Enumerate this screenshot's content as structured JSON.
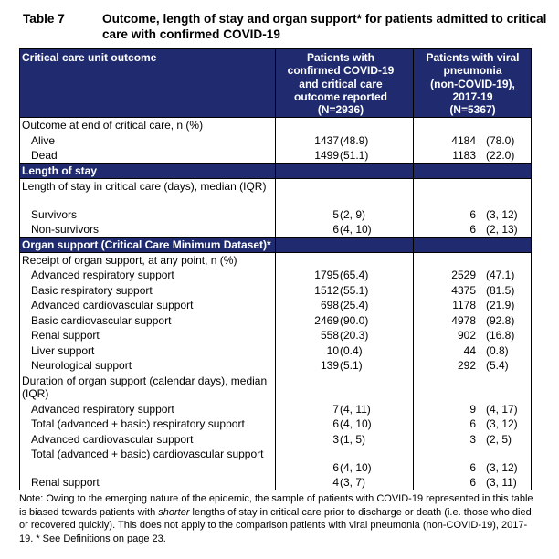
{
  "table": {
    "number": "Table 7",
    "title": "Outcome, length of stay and organ support* for patients admitted to critical care with confirmed COVID-19",
    "header": {
      "col0": "Critical care unit outcome",
      "col1": [
        "Patients with",
        "confirmed COVID-19",
        "and critical care",
        "outcome reported",
        "(N=2936)"
      ],
      "col2": [
        "Patients with viral",
        "pneumonia",
        "(non-COVID-19),",
        "2017-19",
        "(N=5367)"
      ]
    },
    "outcome": {
      "heading": "Outcome at end of critical care, n (%)",
      "rows": [
        {
          "label": "Alive",
          "n1": "1437",
          "p1": "(48.9)",
          "n2": "4184",
          "p2": "(78.0)"
        },
        {
          "label": "Dead",
          "n1": "1499",
          "p1": "(51.1)",
          "n2": "1183",
          "p2": "(22.0)"
        }
      ]
    },
    "los": {
      "section": "Length of stay",
      "heading": "Length of stay in critical care (days), median (IQR)",
      "rows": [
        {
          "label": "Survivors",
          "n1": "5",
          "p1": "(2, 9)",
          "n2": "6",
          "p2": "(3, 12)"
        },
        {
          "label": "Non-survivors",
          "n1": "6",
          "p1": "(4, 10)",
          "n2": "6",
          "p2": "(2, 13)"
        }
      ]
    },
    "organ": {
      "section": "Organ support (Critical Care Minimum Dataset)*",
      "heading": "Receipt of organ support, at any point, n (%)",
      "rows": [
        {
          "label": "Advanced respiratory support",
          "n1": "1795",
          "p1": "(65.4)",
          "n2": "2529",
          "p2": "(47.1)"
        },
        {
          "label": "Basic respiratory support",
          "n1": "1512",
          "p1": "(55.1)",
          "n2": "4375",
          "p2": "(81.5)"
        },
        {
          "label": "Advanced cardiovascular support",
          "n1": "698",
          "p1": "(25.4)",
          "n2": "1178",
          "p2": "(21.9)"
        },
        {
          "label": "Basic cardiovascular support",
          "n1": "2469",
          "p1": "(90.0)",
          "n2": "4978",
          "p2": "(92.8)"
        },
        {
          "label": "Renal support",
          "n1": "558",
          "p1": "(20.3)",
          "n2": "902",
          "p2": "(16.8)"
        },
        {
          "label": "Liver support",
          "n1": "10",
          "p1": "(0.4)",
          "n2": "44",
          "p2": "(0.8)"
        },
        {
          "label": "Neurological support",
          "n1": "139",
          "p1": "(5.1)",
          "n2": "292",
          "p2": "(5.4)"
        }
      ],
      "duration_heading": "Duration of organ support (calendar days), median (IQR)",
      "duration_rows": [
        {
          "label": "Advanced respiratory support",
          "n1": "7",
          "p1": "(4, 11)",
          "n2": "9",
          "p2": "(4, 17)"
        },
        {
          "label": "Total (advanced + basic) respiratory support",
          "n1": "6",
          "p1": "(4, 10)",
          "n2": "6",
          "p2": "(3, 12)"
        },
        {
          "label": "Advanced cardiovascular support",
          "n1": "3",
          "p1": "(1, 5)",
          "n2": "3",
          "p2": "(2, 5)"
        },
        {
          "label": "Total (advanced + basic) cardiovascular support",
          "n1": "6",
          "p1": "(4, 10)",
          "n2": "6",
          "p2": "(3, 12)"
        },
        {
          "label": "Renal support",
          "n1": "4",
          "p1": "(3, 7)",
          "n2": "6",
          "p2": "(3, 11)"
        }
      ]
    },
    "note": {
      "part1": "Note: Owing to the emerging nature of the epidemic, the sample of patients with COVID-19 represented in this table is biased towards patients with ",
      "emph": "shorter",
      "part2": " lengths of stay in critical care prior to discharge or death (i.e. those who died or recovered quickly). This does not apply to the comparison patients with viral pneumonia (non-COVID-19), 2017-19. * See Definitions on page 23."
    },
    "colors": {
      "header_bg": "#1f2b6e",
      "header_text": "#ffffff"
    }
  }
}
